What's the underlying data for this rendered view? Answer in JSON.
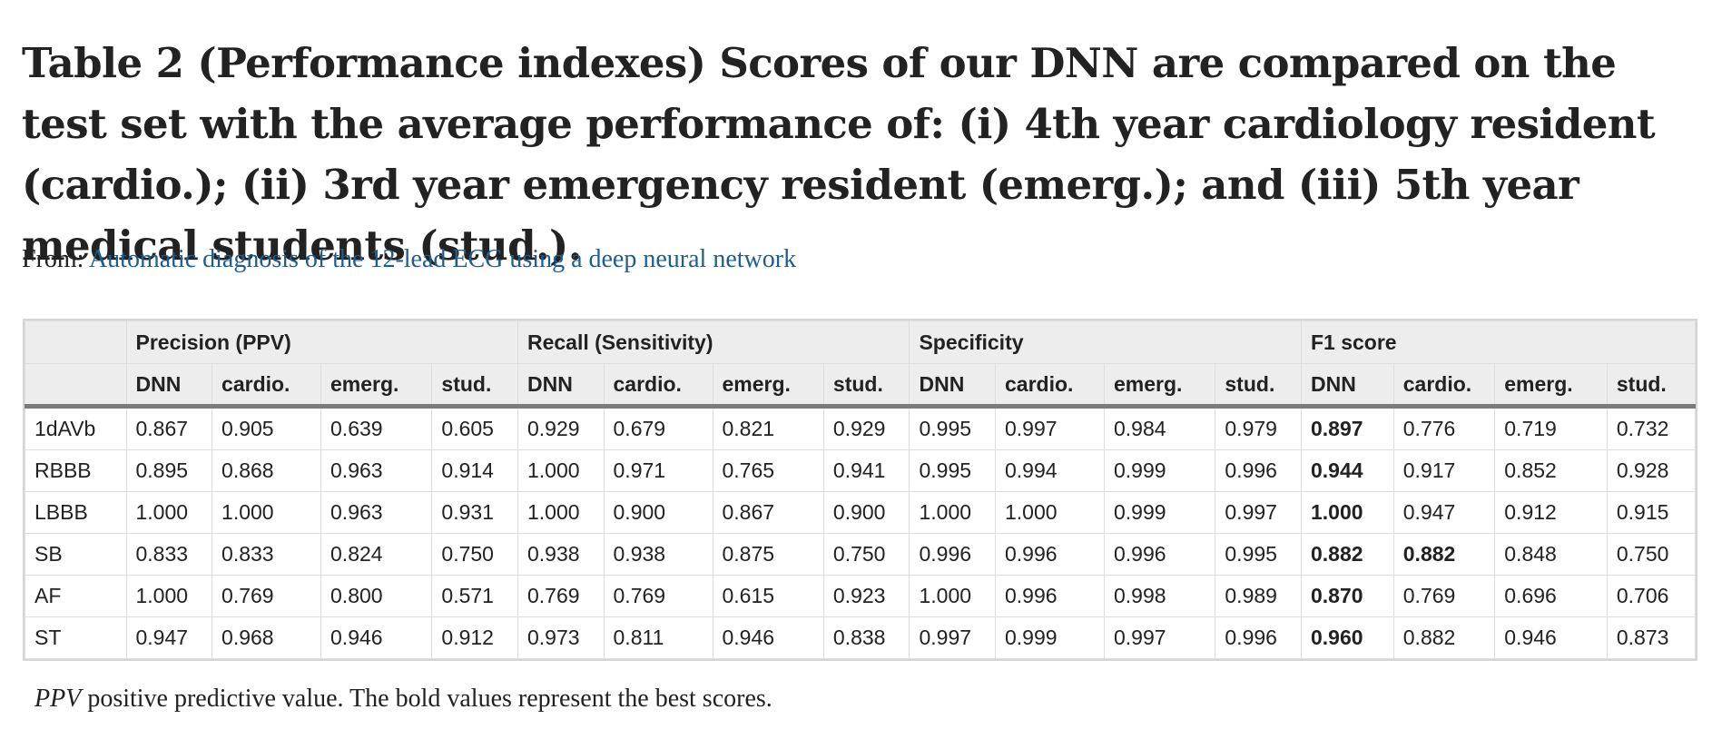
{
  "title": "Table 2 (Performance indexes) Scores of our DNN are compared on the test set with the average performance of: (i) 4th year cardiology resident (cardio.); (ii) 3rd year emergency resident (emerg.); and (iii) 5th year medical students (stud.).",
  "source": {
    "prefix": "From:",
    "link_text": "Automatic diagnosis of the 12-lead ECG using a deep neural network"
  },
  "table": {
    "groups": [
      "Precision (PPV)",
      "Recall (Sensitivity)",
      "Specificity",
      "F1 score"
    ],
    "subheaders": [
      "DNN",
      "cardio.",
      "emerg.",
      "stud."
    ],
    "rows": [
      {
        "label": "1dAVb",
        "values": [
          "0.867",
          "0.905",
          "0.639",
          "0.605",
          "0.929",
          "0.679",
          "0.821",
          "0.929",
          "0.995",
          "0.997",
          "0.984",
          "0.979",
          "0.897",
          "0.776",
          "0.719",
          "0.732"
        ],
        "bold": [
          12
        ]
      },
      {
        "label": "RBBB",
        "values": [
          "0.895",
          "0.868",
          "0.963",
          "0.914",
          "1.000",
          "0.971",
          "0.765",
          "0.941",
          "0.995",
          "0.994",
          "0.999",
          "0.996",
          "0.944",
          "0.917",
          "0.852",
          "0.928"
        ],
        "bold": [
          12
        ]
      },
      {
        "label": "LBBB",
        "values": [
          "1.000",
          "1.000",
          "0.963",
          "0.931",
          "1.000",
          "0.900",
          "0.867",
          "0.900",
          "1.000",
          "1.000",
          "0.999",
          "0.997",
          "1.000",
          "0.947",
          "0.912",
          "0.915"
        ],
        "bold": [
          12
        ]
      },
      {
        "label": "SB",
        "values": [
          "0.833",
          "0.833",
          "0.824",
          "0.750",
          "0.938",
          "0.938",
          "0.875",
          "0.750",
          "0.996",
          "0.996",
          "0.996",
          "0.995",
          "0.882",
          "0.882",
          "0.848",
          "0.750"
        ],
        "bold": [
          12,
          13
        ]
      },
      {
        "label": "AF",
        "values": [
          "1.000",
          "0.769",
          "0.800",
          "0.571",
          "0.769",
          "0.769",
          "0.615",
          "0.923",
          "1.000",
          "0.996",
          "0.998",
          "0.989",
          "0.870",
          "0.769",
          "0.696",
          "0.706"
        ],
        "bold": [
          12
        ]
      },
      {
        "label": "ST",
        "values": [
          "0.947",
          "0.968",
          "0.946",
          "0.912",
          "0.973",
          "0.811",
          "0.946",
          "0.838",
          "0.997",
          "0.999",
          "0.997",
          "0.996",
          "0.960",
          "0.882",
          "0.946",
          "0.873"
        ],
        "bold": [
          12
        ]
      }
    ]
  },
  "footnote": {
    "abbr": "PPV",
    "text": " positive predictive value. The bold values represent the best scores."
  }
}
